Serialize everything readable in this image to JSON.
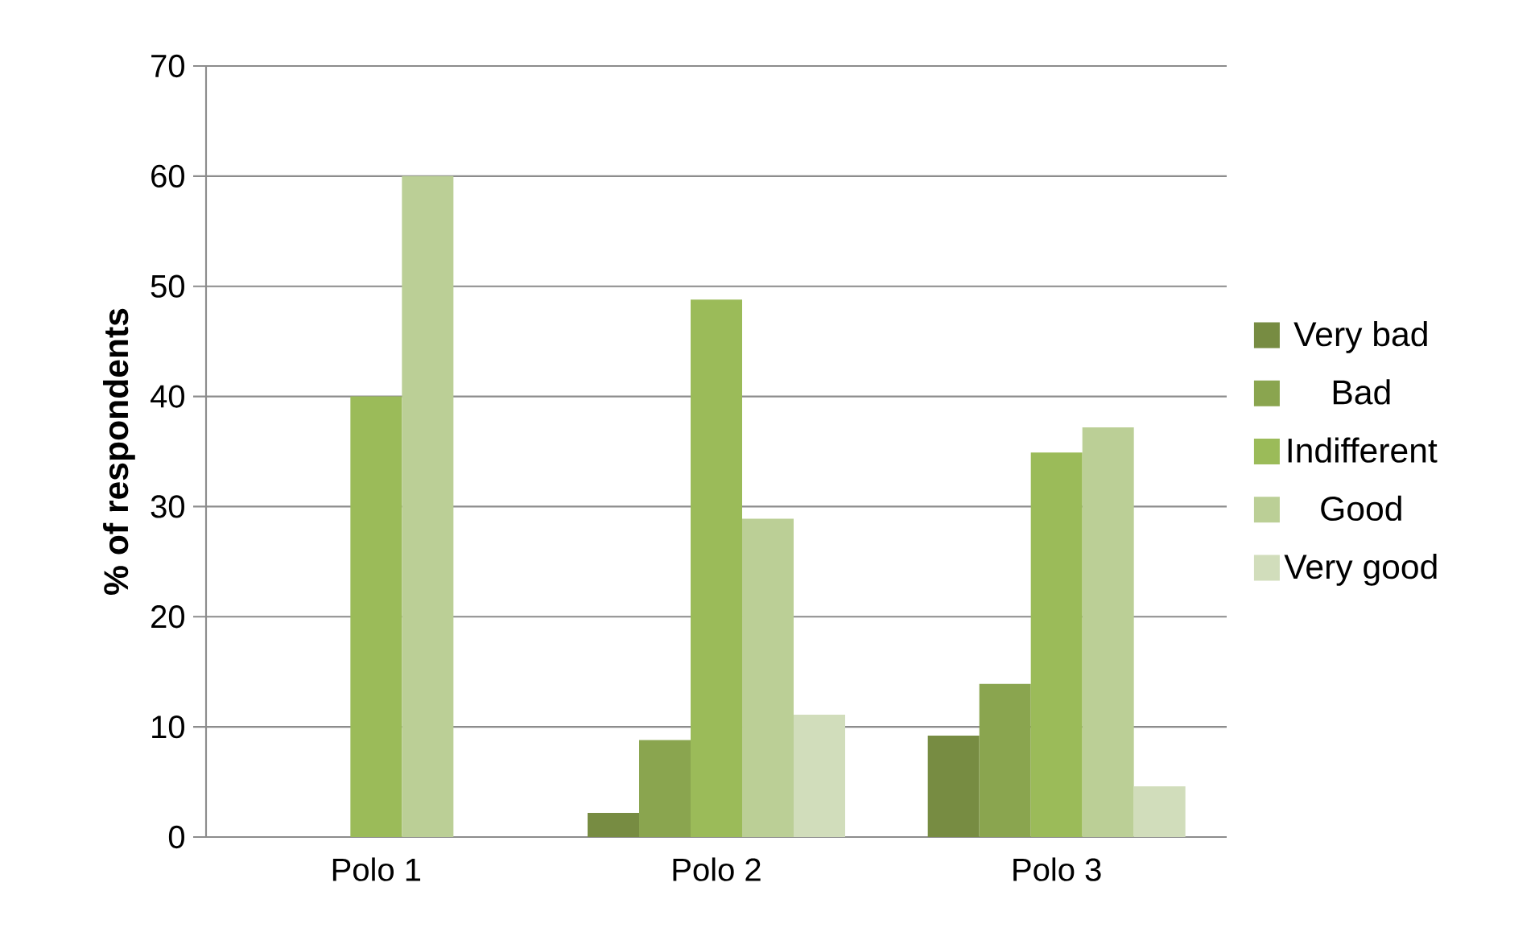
{
  "chart_data": {
    "type": "bar",
    "ylabel": "**% of respondents**",
    "categories": [
      "Polo 1",
      "Polo 2",
      "Polo 3"
    ],
    "series": [
      {
        "name": "Very bad",
        "color": "#778c42",
        "values": [
          0,
          2.2,
          9.2
        ]
      },
      {
        "name": "Bad",
        "color": "#8aa54f",
        "values": [
          0,
          8.8,
          13.9
        ]
      },
      {
        "name": "Indifferent",
        "color": "#9bbb59",
        "values": [
          40.0,
          48.8,
          34.9
        ]
      },
      {
        "name": "Good",
        "color": "#bbcf96",
        "values": [
          60.0,
          28.9,
          37.2
        ]
      },
      {
        "name": "Very good",
        "color": "#d1ddbb",
        "values": [
          0,
          11.1,
          4.6
        ]
      }
    ],
    "ylim": [
      0,
      70
    ],
    "yticks": [
      0,
      10,
      20,
      30,
      40,
      50,
      60,
      70
    ],
    "grid": "y",
    "legend": "right"
  }
}
